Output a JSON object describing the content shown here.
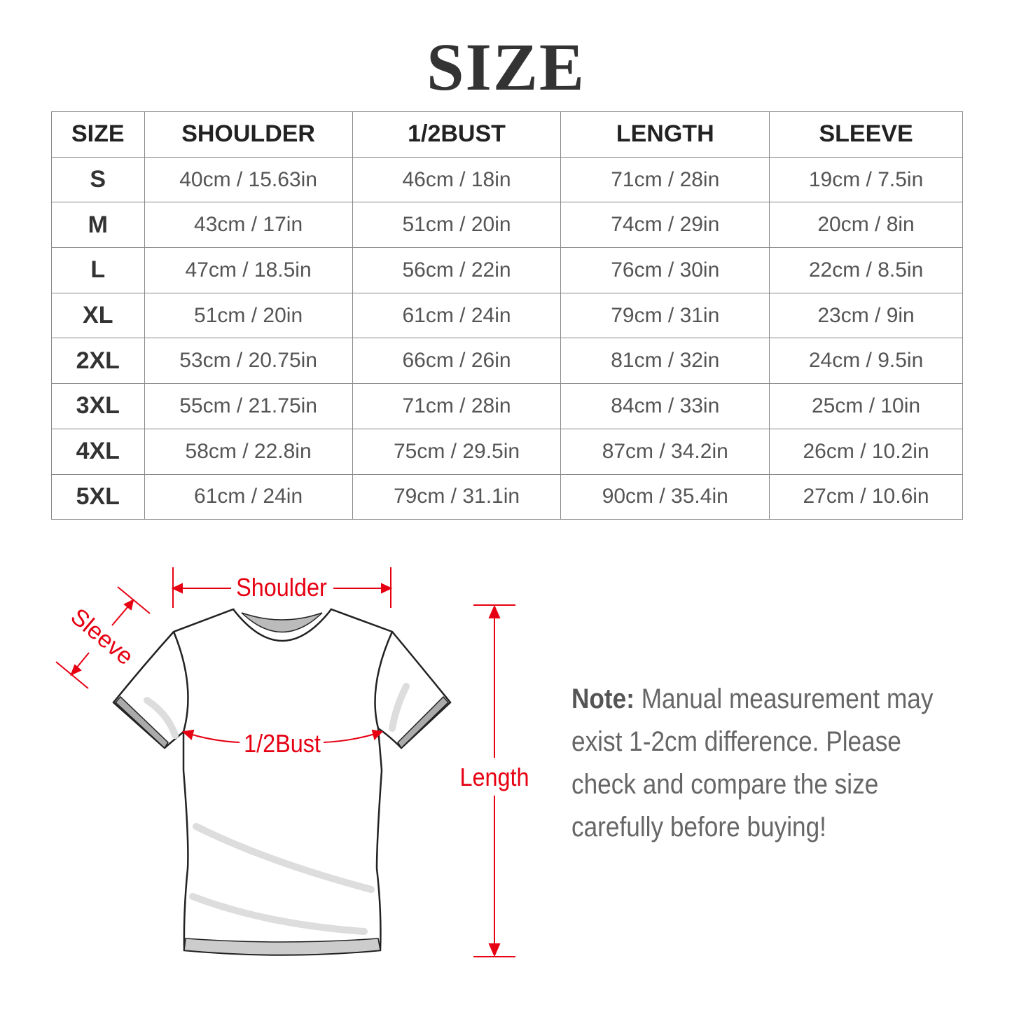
{
  "title": "SIZE",
  "table": {
    "headers": [
      "SIZE",
      "SHOULDER",
      "1/2BUST",
      "LENGTH",
      "SLEEVE"
    ],
    "rows": [
      [
        "S",
        "40cm / 15.63in",
        "46cm / 18in",
        "71cm / 28in",
        "19cm / 7.5in"
      ],
      [
        "M",
        "43cm / 17in",
        "51cm / 20in",
        "74cm / 29in",
        "20cm / 8in"
      ],
      [
        "L",
        "47cm / 18.5in",
        "56cm / 22in",
        "76cm / 30in",
        "22cm / 8.5in"
      ],
      [
        "XL",
        "51cm / 20in",
        "61cm / 24in",
        "79cm / 31in",
        "23cm / 9in"
      ],
      [
        "2XL",
        "53cm / 20.75in",
        "66cm / 26in",
        "81cm / 32in",
        "24cm / 9.5in"
      ],
      [
        "3XL",
        "55cm / 21.75in",
        "71cm / 28in",
        "84cm / 33in",
        "25cm / 10in"
      ],
      [
        "4XL",
        "58cm / 22.8in",
        "75cm / 29.5in",
        "87cm / 34.2in",
        "26cm / 10.2in"
      ],
      [
        "5XL",
        "61cm / 24in",
        "79cm / 31.1in",
        "90cm / 35.4in",
        "27cm / 10.6in"
      ]
    ]
  },
  "diagram": {
    "shoulder": "Shoulder",
    "sleeve": "Sleeve",
    "bust": "1/2Bust",
    "length": "Length",
    "accent_color": "#e60012"
  },
  "note": {
    "label": "Note:",
    "text": " Manual measurement may exist 1-2cm difference. Please check and compare the size carefully before buying!"
  }
}
